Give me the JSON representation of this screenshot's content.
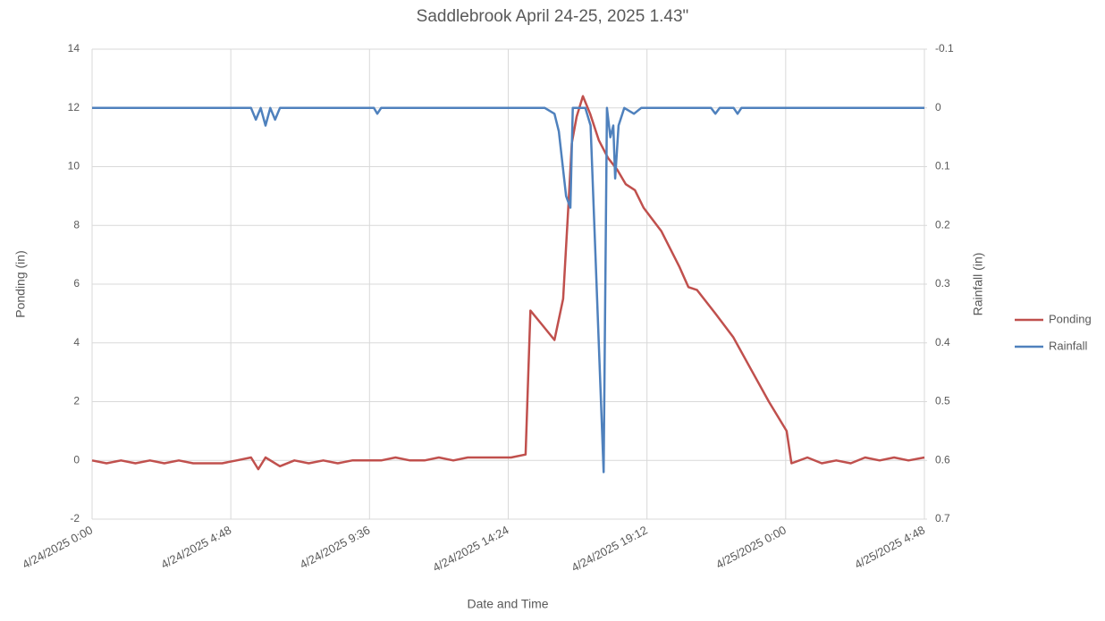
{
  "chart_data": {
    "type": "line",
    "title": "Saddlebrook April 24-25, 2025 1.43\"",
    "x_label": "Date and Time",
    "y_label": "Ponding (in)",
    "y2_label": "Rainfall (in)",
    "xlim": [
      "4/24/2025 0:00",
      "4/25/2025 4:48"
    ],
    "xticks": [
      "4/24/2025 0:00",
      "4/24/2025 4:48",
      "4/24/2025 9:36",
      "4/24/2025 14:24",
      "4/24/2025 19:12",
      "4/25/2025 0:00",
      "4/25/2025 4:48"
    ],
    "ylim": [
      -2,
      14
    ],
    "yticks": [
      -2,
      0,
      2,
      4,
      6,
      8,
      10,
      12,
      14
    ],
    "y2lim": [
      -0.1,
      0.7
    ],
    "y2_inverted": true,
    "y2ticks": [
      -0.1,
      0,
      0.1,
      0.2,
      0.3,
      0.4,
      0.5,
      0.6,
      0.7
    ],
    "grid": true,
    "legend": "right",
    "series": [
      {
        "name": "Ponding",
        "color": "#c0504d",
        "axis": "y",
        "x": [
          "4/24/2025 0:00",
          "4/24/2025 0:30",
          "4/24/2025 1:00",
          "4/24/2025 1:30",
          "4/24/2025 2:00",
          "4/24/2025 2:30",
          "4/24/2025 3:00",
          "4/24/2025 3:30",
          "4/24/2025 4:00",
          "4/24/2025 4:30",
          "4/24/2025 5:00",
          "4/24/2025 5:30",
          "4/24/2025 5:45",
          "4/24/2025 6:00",
          "4/24/2025 6:30",
          "4/24/2025 7:00",
          "4/24/2025 7:30",
          "4/24/2025 8:00",
          "4/24/2025 8:30",
          "4/24/2025 9:00",
          "4/24/2025 9:30",
          "4/24/2025 10:00",
          "4/24/2025 10:30",
          "4/24/2025 11:00",
          "4/24/2025 11:30",
          "4/24/2025 12:00",
          "4/24/2025 12:30",
          "4/24/2025 13:00",
          "4/24/2025 13:30",
          "4/24/2025 14:00",
          "4/24/2025 14:30",
          "4/24/2025 15:00",
          "4/24/2025 15:10",
          "4/24/2025 15:35",
          "4/24/2025 16:00",
          "4/24/2025 16:18",
          "4/24/2025 16:30",
          "4/24/2025 16:36",
          "4/24/2025 16:46",
          "4/24/2025 16:59",
          "4/24/2025 17:14",
          "4/24/2025 17:32",
          "4/24/2025 17:51",
          "4/24/2025 18:10",
          "4/24/2025 18:28",
          "4/24/2025 18:47",
          "4/24/2025 19:05",
          "4/24/2025 19:42",
          "4/24/2025 20:19",
          "4/24/2025 20:38",
          "4/24/2025 20:56",
          "4/24/2025 21:34",
          "4/24/2025 22:11",
          "4/24/2025 22:48",
          "4/24/2025 23:25",
          "4/25/2025 0:02",
          "4/25/2025 0:12",
          "4/25/2025 0:45",
          "4/25/2025 1:15",
          "4/25/2025 1:45",
          "4/25/2025 2:15",
          "4/25/2025 2:45",
          "4/25/2025 3:15",
          "4/25/2025 3:45",
          "4/25/2025 4:15",
          "4/25/2025 4:48"
        ],
        "values": [
          0,
          -0.1,
          0,
          -0.1,
          0,
          -0.1,
          0,
          -0.1,
          -0.1,
          -0.1,
          0,
          0.1,
          -0.3,
          0.1,
          -0.2,
          0,
          -0.1,
          0,
          -0.1,
          0,
          0,
          0,
          0.1,
          0,
          0,
          0.1,
          0,
          0.1,
          0.1,
          0.1,
          0.1,
          0.2,
          5.1,
          4.6,
          4.1,
          5.5,
          9,
          10.8,
          11.7,
          12.4,
          11.8,
          10.9,
          10.3,
          9.9,
          9.4,
          9.2,
          8.6,
          7.8,
          6.6,
          5.9,
          5.8,
          5,
          4.2,
          3.1,
          2,
          1,
          -0.1,
          0.1,
          -0.1,
          0,
          -0.1,
          0.1,
          0,
          0.1,
          0,
          0.1
        ]
      },
      {
        "name": "Rainfall",
        "color": "#4f81bd",
        "axis": "y2",
        "x": [
          "4/24/2025 0:00",
          "4/24/2025 5:30",
          "4/24/2025 5:40",
          "4/24/2025 5:50",
          "4/24/2025 6:00",
          "4/24/2025 6:10",
          "4/24/2025 6:20",
          "4/24/2025 6:30",
          "4/24/2025 9:45",
          "4/24/2025 9:52",
          "4/24/2025 10:00",
          "4/24/2025 15:40",
          "4/24/2025 16:00",
          "4/24/2025 16:09",
          "4/24/2025 16:24",
          "4/24/2025 16:33",
          "4/24/2025 16:38",
          "4/24/2025 17:04",
          "4/24/2025 17:15",
          "4/24/2025 17:42",
          "4/24/2025 17:49",
          "4/24/2025 17:56",
          "4/24/2025 18:02",
          "4/24/2025 18:06",
          "4/24/2025 18:13",
          "4/24/2025 18:25",
          "4/24/2025 18:45",
          "4/24/2025 19:00",
          "4/24/2025 21:25",
          "4/24/2025 21:34",
          "4/24/2025 21:43",
          "4/24/2025 22:12",
          "4/24/2025 22:20",
          "4/24/2025 22:28",
          "4/25/2025 4:48"
        ],
        "values": [
          0,
          0,
          0.02,
          0,
          0.03,
          0,
          0.02,
          0,
          0,
          0.01,
          0,
          0,
          0.01,
          0.04,
          0.15,
          0.17,
          0,
          0,
          0.03,
          0.62,
          0,
          0.05,
          0.03,
          0.12,
          0.03,
          0,
          0.01,
          0,
          0,
          0.01,
          0,
          0,
          0.01,
          0,
          0
        ]
      }
    ]
  }
}
